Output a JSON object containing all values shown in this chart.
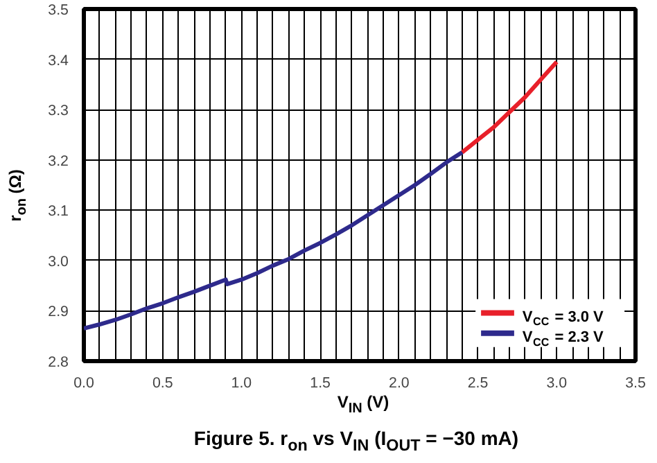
{
  "chart_data": {
    "type": "line",
    "title": "Figure 5. r$_{on}$ vs V$_{IN}$ (I$_{OUT}$ = −30 mA)",
    "xlabel": "V$_{IN}$ (V)",
    "ylabel": "r$_{on}$ (Ω)",
    "xlim": [
      0,
      3.5
    ],
    "ylim": [
      2.8,
      3.5
    ],
    "xticks": [
      {
        "value": 0,
        "label": "0.0"
      },
      0.5,
      {
        "value": 1,
        "label": "1.0"
      },
      1.5,
      {
        "value": 2,
        "label": "2.0"
      },
      2.5,
      {
        "value": 3,
        "label": "3.0"
      },
      3.5
    ],
    "yticks": [
      {
        "value": 2.8,
        "label": "2.8"
      },
      2.9,
      {
        "value": 3.0,
        "label": "3.0"
      },
      3.1,
      3.2,
      3.3,
      3.4,
      3.5
    ],
    "grid": true,
    "legend": "bottom right",
    "marker": "none",
    "line_style": "solid",
    "series": [
      {
        "name": "V$_{CC}$ = 3.0 V",
        "color": "#e8202a",
        "x": [
          2.4,
          2.5,
          2.6,
          2.7,
          2.8,
          2.9,
          3.0
        ],
        "values": [
          3.215,
          3.24,
          3.265,
          3.295,
          3.325,
          3.36,
          3.395
        ]
      },
      {
        "name": "V$_{CC}$ = 2.3 V",
        "color": "#2e2a8c",
        "x": [
          0,
          0.1,
          0.2,
          0.3,
          0.4,
          0.5,
          0.6,
          0.7,
          0.8,
          0.9,
          0.91,
          1.0,
          1.1,
          1.2,
          1.3,
          1.4,
          1.5,
          1.6,
          1.7,
          1.8,
          1.9,
          2.0,
          2.1,
          2.2,
          2.3,
          2.4
        ],
        "values": [
          2.865,
          2.873,
          2.882,
          2.893,
          2.905,
          2.915,
          2.927,
          2.938,
          2.95,
          2.962,
          2.953,
          2.962,
          2.975,
          2.99,
          3.003,
          3.02,
          3.035,
          3.052,
          3.07,
          3.09,
          3.11,
          3.13,
          3.15,
          3.172,
          3.195,
          3.215
        ]
      }
    ]
  }
}
